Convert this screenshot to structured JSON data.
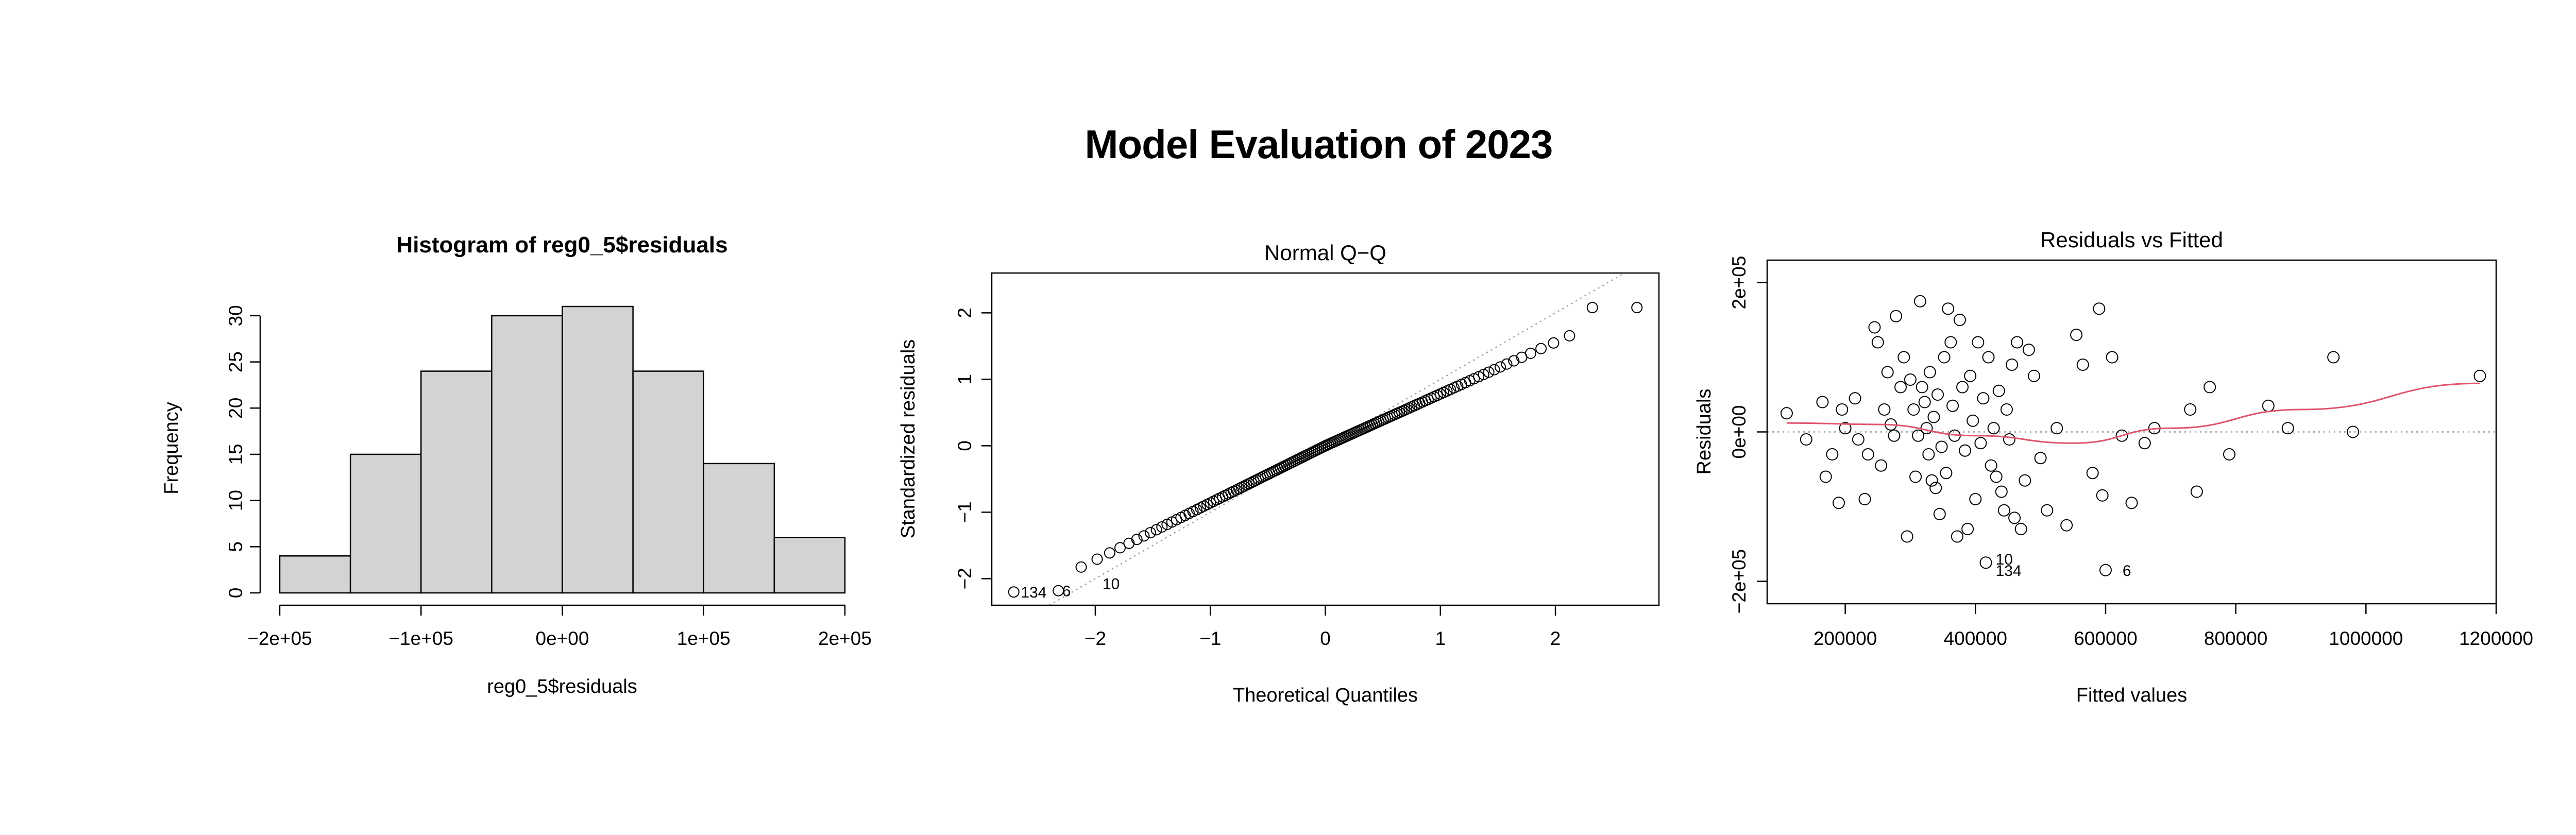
{
  "figure": {
    "title": "Model Evaluation of 2023"
  },
  "colors": {
    "bar_fill": "#d3d3d3",
    "lowess": "#df536b",
    "refline": "#999999",
    "stroke": "#000000"
  },
  "chart_data": [
    {
      "id": "hist",
      "type": "bar",
      "title": "Histogram of reg0_5$residuals",
      "xlabel": "reg0_5$residuals",
      "ylabel": "Frequency",
      "bins": [
        [
          -200000,
          -150000
        ],
        [
          -150000,
          -100000
        ],
        [
          -100000,
          -50000
        ],
        [
          -50000,
          0
        ],
        [
          0,
          50000
        ],
        [
          50000,
          100000
        ],
        [
          100000,
          150000
        ],
        [
          150000,
          200000
        ]
      ],
      "values": [
        4,
        15,
        24,
        30,
        31,
        24,
        14,
        6
      ],
      "xlim": [
        -200000,
        200000
      ],
      "ylim": [
        0,
        31
      ],
      "xticks": [
        -200000,
        -100000,
        0,
        100000,
        200000
      ],
      "xtick_labels": [
        "−2e+05",
        "−1e+05",
        "0e+00",
        "1e+05",
        "2e+05"
      ],
      "yticks": [
        0,
        5,
        10,
        15,
        20,
        25,
        30
      ],
      "ytick_labels": [
        "0",
        "5",
        "10",
        "15",
        "20",
        "25",
        "30"
      ]
    },
    {
      "id": "qq",
      "type": "scatter",
      "title": "Normal Q−Q",
      "xlabel": "Theoretical Quantiles",
      "ylabel": "Standardized residuals",
      "xlim": [
        -2.9,
        2.9
      ],
      "ylim": [
        -2.4,
        2.6
      ],
      "xticks": [
        -2,
        -1,
        0,
        1,
        2
      ],
      "xtick_labels": [
        "−2",
        "−1",
        "0",
        "1",
        "2"
      ],
      "yticks": [
        -2,
        -1,
        0,
        1,
        2
      ],
      "ytick_labels": [
        "−2",
        "−1",
        "0",
        "1",
        "2"
      ],
      "n_points": 148,
      "reference_line": {
        "slope": 1,
        "intercept": 0,
        "style": "dotted"
      },
      "point_labels": [
        {
          "text": "134",
          "x": -2.71,
          "y": -2.2
        },
        {
          "text": "6",
          "x": -2.35,
          "y": -2.18
        },
        {
          "text": "10",
          "x": -2.0,
          "y": -2.07
        }
      ]
    },
    {
      "id": "rvf",
      "type": "scatter",
      "title": "Residuals vs Fitted",
      "xlabel": "Fitted values",
      "ylabel": "Residuals",
      "xlim": [
        80000,
        1200000
      ],
      "ylim": [
        -230000,
        230000
      ],
      "xticks": [
        200000,
        400000,
        600000,
        800000,
        1000000,
        1200000
      ],
      "xtick_labels": [
        "200000",
        "400000",
        "600000",
        "800000",
        "1000000",
        "1200000"
      ],
      "yticks": [
        -200000,
        0,
        200000
      ],
      "ytick_labels": [
        "−2e+05",
        "0e+00",
        "2e+05"
      ],
      "points": [
        [
          110000,
          25000
        ],
        [
          140000,
          -10000
        ],
        [
          165000,
          40000
        ],
        [
          170000,
          -60000
        ],
        [
          180000,
          -30000
        ],
        [
          190000,
          -95000
        ],
        [
          195000,
          30000
        ],
        [
          200000,
          5000
        ],
        [
          215000,
          45000
        ],
        [
          220000,
          -10000
        ],
        [
          230000,
          -90000
        ],
        [
          235000,
          -30000
        ],
        [
          245000,
          140000
        ],
        [
          250000,
          120000
        ],
        [
          255000,
          -45000
        ],
        [
          260000,
          30000
        ],
        [
          265000,
          80000
        ],
        [
          270000,
          10000
        ],
        [
          275000,
          -5000
        ],
        [
          278000,
          155000
        ],
        [
          285000,
          60000
        ],
        [
          290000,
          100000
        ],
        [
          295000,
          -140000
        ],
        [
          300000,
          70000
        ],
        [
          305000,
          30000
        ],
        [
          308000,
          -60000
        ],
        [
          312000,
          -5000
        ],
        [
          315000,
          175000
        ],
        [
          318000,
          60000
        ],
        [
          322000,
          40000
        ],
        [
          325000,
          5000
        ],
        [
          328000,
          -30000
        ],
        [
          330000,
          80000
        ],
        [
          333000,
          -65000
        ],
        [
          336000,
          20000
        ],
        [
          339000,
          -75000
        ],
        [
          342000,
          50000
        ],
        [
          345000,
          -110000
        ],
        [
          348000,
          -20000
        ],
        [
          352000,
          100000
        ],
        [
          355000,
          -55000
        ],
        [
          358000,
          165000
        ],
        [
          362000,
          120000
        ],
        [
          365000,
          35000
        ],
        [
          368000,
          -5000
        ],
        [
          372000,
          -140000
        ],
        [
          376000,
          150000
        ],
        [
          380000,
          60000
        ],
        [
          384000,
          -25000
        ],
        [
          388000,
          -130000
        ],
        [
          392000,
          75000
        ],
        [
          396000,
          15000
        ],
        [
          400000,
          -90000
        ],
        [
          404000,
          120000
        ],
        [
          408000,
          -15000
        ],
        [
          412000,
          45000
        ],
        [
          416000,
          -175000
        ],
        [
          420000,
          100000
        ],
        [
          424000,
          -45000
        ],
        [
          428000,
          5000
        ],
        [
          432000,
          -60000
        ],
        [
          436000,
          55000
        ],
        [
          440000,
          -80000
        ],
        [
          444000,
          -105000
        ],
        [
          448000,
          30000
        ],
        [
          452000,
          -10000
        ],
        [
          456000,
          90000
        ],
        [
          460000,
          -115000
        ],
        [
          464000,
          120000
        ],
        [
          470000,
          -130000
        ],
        [
          476000,
          -65000
        ],
        [
          482000,
          110000
        ],
        [
          490000,
          75000
        ],
        [
          500000,
          -35000
        ],
        [
          510000,
          -105000
        ],
        [
          525000,
          5000
        ],
        [
          540000,
          -125000
        ],
        [
          555000,
          130000
        ],
        [
          565000,
          90000
        ],
        [
          580000,
          -55000
        ],
        [
          590000,
          165000
        ],
        [
          595000,
          -85000
        ],
        [
          600000,
          -185000
        ],
        [
          610000,
          100000
        ],
        [
          625000,
          -5000
        ],
        [
          640000,
          -95000
        ],
        [
          660000,
          -15000
        ],
        [
          675000,
          5000
        ],
        [
          730000,
          30000
        ],
        [
          740000,
          -80000
        ],
        [
          760000,
          60000
        ],
        [
          790000,
          -30000
        ],
        [
          850000,
          35000
        ],
        [
          880000,
          5000
        ],
        [
          950000,
          100000
        ],
        [
          980000,
          0
        ],
        [
          1175000,
          75000
        ]
      ],
      "reference_line": {
        "y": 0,
        "style": "dotted"
      },
      "smooth_line": [
        [
          110000,
          12000
        ],
        [
          250000,
          10000
        ],
        [
          400000,
          -5000
        ],
        [
          550000,
          -15000
        ],
        [
          700000,
          5000
        ],
        [
          900000,
          30000
        ],
        [
          1175000,
          65000
        ]
      ],
      "point_labels": [
        {
          "text": "10",
          "x": 420000,
          "y": -170000
        },
        {
          "text": "134",
          "x": 420000,
          "y": -185000
        },
        {
          "text": "6",
          "x": 615000,
          "y": -185000
        }
      ]
    }
  ]
}
